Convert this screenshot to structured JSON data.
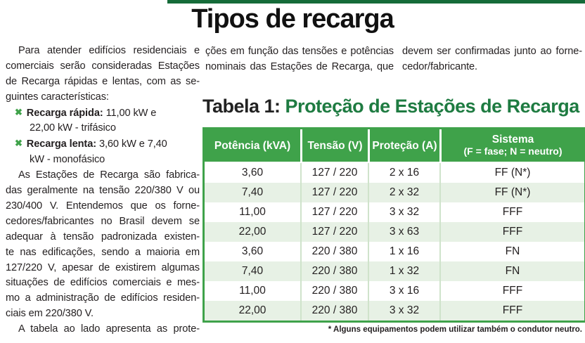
{
  "page_title": "Tipos de recarga",
  "colors": {
    "accent_green": "#3fa24a",
    "dark_green": "#1e7b41",
    "topbar_green": "#156b39",
    "row_alt_green": "#e7f1e5",
    "text": "#231f20"
  },
  "article": {
    "col1_lines": [
      {
        "t": "Para atender edifícios residenciais e",
        "indent": true,
        "j": true
      },
      {
        "t": "comerciais serão consideradas Estações",
        "j": true
      },
      {
        "t": "de Recarga rápidas e lentas, com as se-",
        "j": true
      },
      {
        "t": "guintes características:"
      },
      {
        "marker": "✖",
        "b": "Recarga rápida:",
        "t": " 11,00 kW e"
      },
      {
        "t": "22,00 kW - trifásico",
        "hang": true
      },
      {
        "marker": "✖",
        "b": "Recarga lenta:",
        "t": " 3,60 kW e 7,40"
      },
      {
        "t": "kW - monofásico",
        "hang": true
      },
      {
        "t": "As Estações de Recarga são fabrica-",
        "indent": true,
        "j": true
      },
      {
        "t": "das geralmente na tensão 220/380 V ou",
        "j": true
      },
      {
        "t": "230/400 V. Entendemos que os forne-",
        "j": true
      },
      {
        "t": "cedores/fabricantes no Brasil devem se",
        "j": true
      },
      {
        "t": "adequar à tensão padronizada existen-",
        "j": true
      },
      {
        "t": "te nas edificações, sendo a maioria em",
        "j": true
      },
      {
        "t": "127/220 V, apesar de existirem algumas",
        "j": true
      },
      {
        "t": "situações de edifícios comerciais e mes-",
        "j": true
      },
      {
        "t": "mo a administração de edifícios residen-",
        "j": true
      },
      {
        "t": "ciais em 220/380 V."
      },
      {
        "t": "A tabela ao lado apresenta as prote-",
        "indent": true,
        "j": true
      }
    ],
    "col2_lines": [
      {
        "t": "ções em função das tensões e potências",
        "j": true
      },
      {
        "t": "nominais das Estações de Recarga, que",
        "j": true
      }
    ],
    "col3_lines": [
      {
        "t": "devem ser confirmadas junto ao forne-",
        "j": true
      },
      {
        "t": "cedor/fabricante."
      }
    ]
  },
  "table_section": {
    "title_prefix": "Tabela 1:",
    "title_main": " Proteção de Estações de Recarga",
    "table": {
      "headers": [
        {
          "label": "Potência (kVA)"
        },
        {
          "label": "Tensão (V)"
        },
        {
          "label": "Proteção (A)"
        },
        {
          "label": "Sistema",
          "sub": "(F = fase; N = neutro)"
        }
      ],
      "rows": [
        [
          "3,60",
          "127 / 220",
          "2 x 16",
          "FF (N*)"
        ],
        [
          "7,40",
          "127 / 220",
          "2 x 32",
          "FF (N*)"
        ],
        [
          "11,00",
          "127 / 220",
          "3 x 32",
          "FFF"
        ],
        [
          "22,00",
          "127 / 220",
          "3 x 63",
          "FFF"
        ],
        [
          "3,60",
          "220 / 380",
          "1 x 16",
          "FN"
        ],
        [
          "7,40",
          "220 / 380",
          "1 x 32",
          "FN"
        ],
        [
          "11,00",
          "220 / 380",
          "3 x 16",
          "FFF"
        ],
        [
          "22,00",
          "220 / 380",
          "3 x 32",
          "FFF"
        ]
      ]
    },
    "footnote": "* Alguns equipamentos podem utilizar também o condutor neutro."
  }
}
